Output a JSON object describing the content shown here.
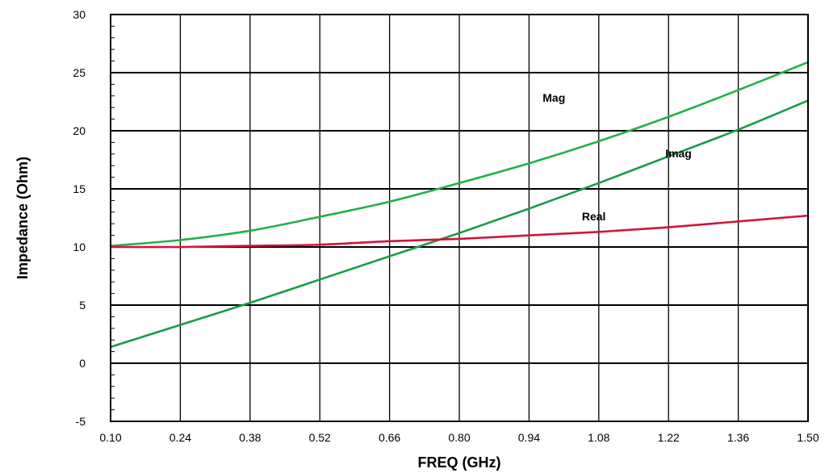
{
  "chart_data": {
    "type": "line",
    "xlabel": "FREQ (GHz)",
    "ylabel": "Impedance (Ohm)",
    "xlim": [
      0.1,
      1.5
    ],
    "ylim": [
      -5,
      30
    ],
    "x_ticks": [
      "0.10",
      "0.24",
      "0.38",
      "0.52",
      "0.66",
      "0.80",
      "0.94",
      "1.08",
      "1.22",
      "1.36",
      "1.50"
    ],
    "y_ticks": [
      "-5",
      "0",
      "5",
      "10",
      "15",
      "20",
      "25",
      "30"
    ],
    "grid": true,
    "series": [
      {
        "name": "Mag",
        "color": "#22b04b",
        "x": [
          0.1,
          0.24,
          0.38,
          0.52,
          0.66,
          0.8,
          0.94,
          1.08,
          1.22,
          1.36,
          1.5
        ],
        "y": [
          10.1,
          10.6,
          11.4,
          12.6,
          13.9,
          15.5,
          17.2,
          19.1,
          21.2,
          23.5,
          25.9
        ]
      },
      {
        "name": "Imag",
        "color": "#1a9a4a",
        "x": [
          0.1,
          0.24,
          0.38,
          0.52,
          0.66,
          0.8,
          0.94,
          1.08,
          1.22,
          1.36,
          1.5
        ],
        "y": [
          1.4,
          3.3,
          5.2,
          7.2,
          9.2,
          11.2,
          13.3,
          15.5,
          17.8,
          20.1,
          22.6
        ]
      },
      {
        "name": "Real",
        "color": "#d4133d",
        "x": [
          0.1,
          0.24,
          0.38,
          0.52,
          0.66,
          0.8,
          0.94,
          1.08,
          1.22,
          1.36,
          1.5
        ],
        "y": [
          10.0,
          10.0,
          10.1,
          10.2,
          10.5,
          10.7,
          11.0,
          11.3,
          11.7,
          12.2,
          12.7
        ]
      }
    ],
    "annotations": [
      {
        "text": "Mag",
        "x": 0.99,
        "y": 22.5
      },
      {
        "text": "Imag",
        "x": 1.24,
        "y": 17.7
      },
      {
        "text": "Real",
        "x": 1.07,
        "y": 12.3
      }
    ]
  }
}
